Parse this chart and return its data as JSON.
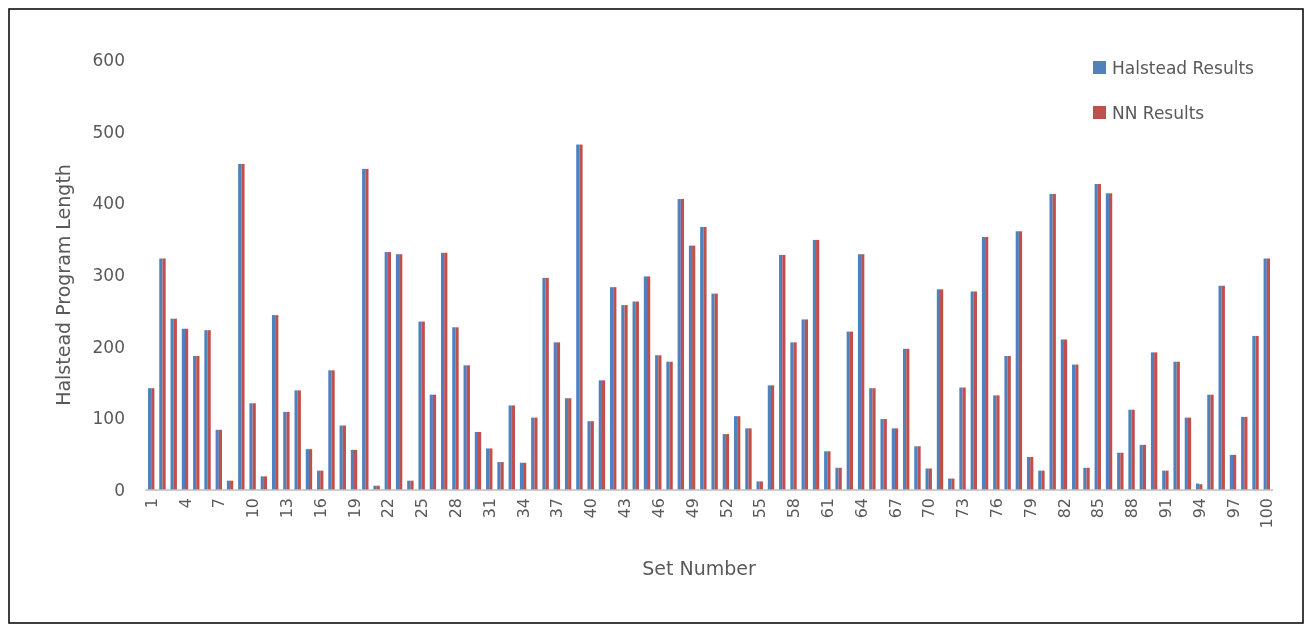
{
  "chart_data": {
    "type": "bar",
    "xlabel": "Set Number",
    "ylabel": "Halstead Program Length",
    "categories": [
      "1",
      null,
      null,
      "4",
      null,
      null,
      "7",
      null,
      null,
      "10",
      null,
      null,
      "13",
      null,
      null,
      "16",
      null,
      null,
      "19",
      null,
      null,
      "22",
      null,
      null,
      "25",
      null,
      null,
      "28",
      null,
      null,
      "31",
      null,
      null,
      "34",
      null,
      null,
      "37",
      null,
      null,
      "40",
      null,
      null,
      "43",
      null,
      null,
      "46",
      null,
      null,
      "49",
      null,
      null,
      "52",
      null,
      null,
      "55",
      null,
      null,
      "58",
      null,
      null,
      "61",
      null,
      null,
      "64",
      null,
      null,
      "67",
      null,
      null,
      "70",
      null,
      null,
      "73",
      null,
      null,
      "76",
      null,
      null,
      "79",
      null,
      null,
      "82",
      null,
      null,
      "85",
      null,
      null,
      "88",
      null,
      null,
      "91",
      null,
      null,
      "94",
      null,
      null,
      "97",
      null,
      null,
      "100"
    ],
    "series": [
      {
        "name": "Halstead Results",
        "color": "#4f81bd",
        "values": [
          142,
          323,
          239,
          225,
          187,
          223,
          84,
          13,
          455,
          121,
          19,
          244,
          109,
          139,
          57,
          27,
          167,
          90,
          56,
          448,
          6,
          332,
          329,
          13,
          235,
          133,
          331,
          227,
          174,
          81,
          58,
          39,
          118,
          38,
          101,
          296,
          206,
          128,
          482,
          96,
          153,
          283,
          258,
          263,
          298,
          188,
          179,
          406,
          341,
          367,
          274,
          78,
          103,
          86,
          12,
          146,
          328,
          206,
          238,
          349,
          54,
          31,
          221,
          329,
          142,
          99,
          86,
          197,
          61,
          30,
          280,
          16,
          143,
          277,
          353,
          132,
          187,
          361,
          46,
          27,
          413,
          210,
          175,
          31,
          427,
          414,
          52,
          112,
          63,
          192,
          27,
          179,
          101,
          9,
          133,
          285,
          49,
          102,
          215,
          323
        ]
      },
      {
        "name": "NN Results",
        "color": "#c0504d",
        "values": [
          142,
          323,
          239,
          225,
          187,
          223,
          84,
          13,
          455,
          121,
          19,
          244,
          109,
          139,
          57,
          27,
          167,
          90,
          56,
          448,
          6,
          332,
          329,
          13,
          235,
          133,
          331,
          227,
          174,
          81,
          58,
          39,
          118,
          38,
          101,
          296,
          206,
          128,
          482,
          96,
          153,
          283,
          258,
          263,
          298,
          188,
          179,
          406,
          341,
          367,
          274,
          78,
          103,
          86,
          12,
          146,
          328,
          206,
          238,
          349,
          54,
          31,
          221,
          329,
          142,
          99,
          86,
          197,
          61,
          30,
          280,
          16,
          143,
          277,
          353,
          132,
          187,
          361,
          46,
          27,
          413,
          210,
          175,
          31,
          427,
          414,
          52,
          112,
          63,
          192,
          27,
          179,
          101,
          8,
          133,
          285,
          49,
          102,
          215,
          323
        ]
      }
    ],
    "ylim": [
      0,
      600
    ],
    "yticks": [
      0,
      100,
      200,
      300,
      400,
      500,
      600
    ],
    "grid": false,
    "legend": "top right"
  }
}
